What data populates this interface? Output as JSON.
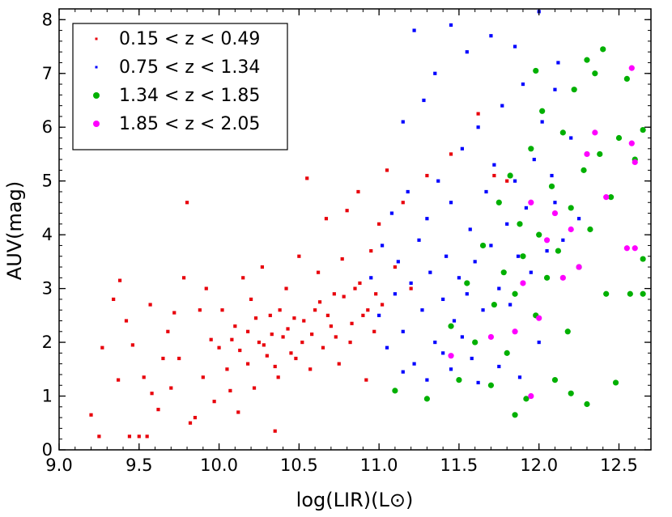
{
  "chart_data": {
    "type": "scatter",
    "xlabel": "log(LIR)(L⊙)",
    "ylabel": "AUV(mag)",
    "xlim": [
      9.0,
      12.7
    ],
    "ylim": [
      0,
      8.2
    ],
    "xticks": [
      "9.0",
      "9.5",
      "10.0",
      "10.5",
      "11.0",
      "11.5",
      "12.0",
      "12.5"
    ],
    "yticks": [
      "0",
      "1",
      "2",
      "3",
      "4",
      "5",
      "6",
      "7",
      "8"
    ],
    "grid": false,
    "legend_position": "top-left",
    "series": [
      {
        "name": "0.15 < z < 0.49",
        "color": "#e8000b",
        "marker": "square",
        "points": [
          [
            9.2,
            0.65
          ],
          [
            9.25,
            0.25
          ],
          [
            9.27,
            1.9
          ],
          [
            9.34,
            2.8
          ],
          [
            9.37,
            1.3
          ],
          [
            9.38,
            3.15
          ],
          [
            9.42,
            2.4
          ],
          [
            9.44,
            0.25
          ],
          [
            9.46,
            1.95
          ],
          [
            9.5,
            0.25
          ],
          [
            9.53,
            1.35
          ],
          [
            9.55,
            0.25
          ],
          [
            9.57,
            2.7
          ],
          [
            9.58,
            1.05
          ],
          [
            9.62,
            0.75
          ],
          [
            9.65,
            1.7
          ],
          [
            9.68,
            2.2
          ],
          [
            9.7,
            1.15
          ],
          [
            9.72,
            2.55
          ],
          [
            9.75,
            1.7
          ],
          [
            9.78,
            3.2
          ],
          [
            9.8,
            4.6
          ],
          [
            9.82,
            0.5
          ],
          [
            9.85,
            0.6
          ],
          [
            9.88,
            2.6
          ],
          [
            9.9,
            1.35
          ],
          [
            9.92,
            3.0
          ],
          [
            9.95,
            2.05
          ],
          [
            9.97,
            0.9
          ],
          [
            10.0,
            1.9
          ],
          [
            10.02,
            2.6
          ],
          [
            10.05,
            1.5
          ],
          [
            10.07,
            1.1
          ],
          [
            10.1,
            2.3
          ],
          [
            10.12,
            0.7
          ],
          [
            10.15,
            3.2
          ],
          [
            10.18,
            1.6
          ],
          [
            10.2,
            2.8
          ],
          [
            10.22,
            1.15
          ],
          [
            10.25,
            2.0
          ],
          [
            10.27,
            3.4
          ],
          [
            10.3,
            1.75
          ],
          [
            10.32,
            2.5
          ],
          [
            10.35,
            0.35
          ],
          [
            10.37,
            1.35
          ],
          [
            10.4,
            2.1
          ],
          [
            10.42,
            3.0
          ],
          [
            10.45,
            1.8
          ],
          [
            10.47,
            2.45
          ],
          [
            10.5,
            3.6
          ],
          [
            10.52,
            2.0
          ],
          [
            10.55,
            5.05
          ],
          [
            10.57,
            1.5
          ],
          [
            10.6,
            2.6
          ],
          [
            10.62,
            3.3
          ],
          [
            10.65,
            1.9
          ],
          [
            10.67,
            4.3
          ],
          [
            10.7,
            2.3
          ],
          [
            10.72,
            2.9
          ],
          [
            10.75,
            1.6
          ],
          [
            10.77,
            3.55
          ],
          [
            10.8,
            4.45
          ],
          [
            10.82,
            2.0
          ],
          [
            10.85,
            3.0
          ],
          [
            10.87,
            4.8
          ],
          [
            10.9,
            2.5
          ],
          [
            10.92,
            1.3
          ],
          [
            10.95,
            3.7
          ],
          [
            10.97,
            2.2
          ],
          [
            11.0,
            4.2
          ],
          [
            11.02,
            2.7
          ],
          [
            11.05,
            5.2
          ],
          [
            11.1,
            3.4
          ],
          [
            11.15,
            4.6
          ],
          [
            11.2,
            3.0
          ],
          [
            11.3,
            5.1
          ],
          [
            11.45,
            5.5
          ],
          [
            11.62,
            6.25
          ],
          [
            11.72,
            5.1
          ],
          [
            11.8,
            5.0
          ],
          [
            10.08,
            2.05
          ],
          [
            10.13,
            1.85
          ],
          [
            10.18,
            2.2
          ],
          [
            10.23,
            2.45
          ],
          [
            10.28,
            1.95
          ],
          [
            10.33,
            2.15
          ],
          [
            10.38,
            2.6
          ],
          [
            10.43,
            2.25
          ],
          [
            10.48,
            1.7
          ],
          [
            10.53,
            2.4
          ],
          [
            10.58,
            2.15
          ],
          [
            10.63,
            2.75
          ],
          [
            10.68,
            2.5
          ],
          [
            10.73,
            2.1
          ],
          [
            10.78,
            2.85
          ],
          [
            10.83,
            2.35
          ],
          [
            10.88,
            3.1
          ],
          [
            10.93,
            2.6
          ],
          [
            10.98,
            2.9
          ],
          [
            10.35,
            1.55
          ]
        ]
      },
      {
        "name": "0.75 < z < 1.34",
        "color": "#0000ff",
        "marker": "square",
        "points": [
          [
            10.95,
            3.2
          ],
          [
            11.0,
            2.5
          ],
          [
            11.02,
            3.8
          ],
          [
            11.05,
            1.9
          ],
          [
            11.08,
            4.4
          ],
          [
            11.1,
            2.9
          ],
          [
            11.12,
            3.5
          ],
          [
            11.15,
            2.2
          ],
          [
            11.18,
            4.8
          ],
          [
            11.2,
            3.1
          ],
          [
            11.22,
            1.6
          ],
          [
            11.25,
            3.9
          ],
          [
            11.27,
            2.6
          ],
          [
            11.3,
            4.3
          ],
          [
            11.32,
            3.3
          ],
          [
            11.35,
            2.0
          ],
          [
            11.37,
            5.0
          ],
          [
            11.4,
            2.8
          ],
          [
            11.42,
            3.6
          ],
          [
            11.45,
            4.6
          ],
          [
            11.47,
            2.4
          ],
          [
            11.5,
            3.2
          ],
          [
            11.52,
            5.6
          ],
          [
            11.55,
            2.9
          ],
          [
            11.57,
            4.1
          ],
          [
            11.6,
            3.5
          ],
          [
            11.62,
            6.0
          ],
          [
            11.65,
            2.6
          ],
          [
            11.67,
            4.8
          ],
          [
            11.7,
            3.8
          ],
          [
            11.72,
            5.3
          ],
          [
            11.75,
            3.0
          ],
          [
            11.77,
            6.4
          ],
          [
            11.8,
            4.2
          ],
          [
            11.82,
            2.7
          ],
          [
            11.85,
            5.0
          ],
          [
            11.87,
            3.6
          ],
          [
            11.9,
            6.8
          ],
          [
            11.92,
            4.5
          ],
          [
            11.95,
            3.3
          ],
          [
            11.97,
            5.4
          ],
          [
            12.0,
            4.0
          ],
          [
            12.02,
            6.1
          ],
          [
            12.05,
            3.7
          ],
          [
            12.08,
            5.1
          ],
          [
            12.1,
            4.6
          ],
          [
            12.12,
            7.2
          ],
          [
            12.15,
            3.9
          ],
          [
            12.2,
            5.8
          ],
          [
            12.25,
            4.3
          ],
          [
            11.22,
            7.8
          ],
          [
            11.35,
            7.0
          ],
          [
            11.45,
            7.9
          ],
          [
            11.55,
            7.4
          ],
          [
            11.7,
            7.7
          ],
          [
            11.85,
            7.5
          ],
          [
            12.0,
            8.15
          ],
          [
            12.1,
            6.7
          ],
          [
            11.15,
            6.1
          ],
          [
            11.28,
            6.5
          ],
          [
            11.3,
            1.3
          ],
          [
            11.45,
            1.5
          ],
          [
            11.58,
            1.7
          ],
          [
            11.62,
            1.25
          ],
          [
            11.75,
            1.55
          ],
          [
            11.88,
            1.35
          ],
          [
            12.0,
            2.0
          ],
          [
            11.15,
            1.45
          ],
          [
            11.4,
            1.8
          ],
          [
            11.52,
            2.1
          ]
        ]
      },
      {
        "name": "1.34 < z < 1.85",
        "color": "#00b000",
        "marker": "circle",
        "points": [
          [
            11.1,
            1.1
          ],
          [
            11.3,
            0.95
          ],
          [
            11.45,
            2.3
          ],
          [
            11.5,
            1.3
          ],
          [
            11.55,
            3.1
          ],
          [
            11.6,
            2.0
          ],
          [
            11.65,
            3.8
          ],
          [
            11.7,
            1.2
          ],
          [
            11.72,
            2.7
          ],
          [
            11.75,
            4.6
          ],
          [
            11.78,
            3.3
          ],
          [
            11.8,
            1.8
          ],
          [
            11.82,
            5.1
          ],
          [
            11.85,
            2.9
          ],
          [
            11.88,
            4.2
          ],
          [
            11.9,
            3.6
          ],
          [
            11.92,
            0.95
          ],
          [
            11.95,
            5.6
          ],
          [
            11.98,
            2.5
          ],
          [
            12.0,
            4.0
          ],
          [
            12.02,
            6.3
          ],
          [
            12.05,
            3.2
          ],
          [
            12.08,
            4.9
          ],
          [
            12.1,
            1.3
          ],
          [
            12.12,
            3.7
          ],
          [
            12.15,
            5.9
          ],
          [
            12.18,
            2.2
          ],
          [
            12.2,
            4.5
          ],
          [
            12.22,
            6.7
          ],
          [
            12.25,
            3.4
          ],
          [
            12.28,
            5.2
          ],
          [
            12.3,
            0.85
          ],
          [
            12.32,
            4.1
          ],
          [
            12.35,
            7.0
          ],
          [
            12.38,
            5.5
          ],
          [
            12.4,
            7.45
          ],
          [
            12.42,
            2.9
          ],
          [
            12.45,
            4.7
          ],
          [
            12.5,
            5.8
          ],
          [
            12.55,
            6.9
          ],
          [
            12.6,
            5.4
          ],
          [
            12.65,
            5.95
          ],
          [
            12.65,
            3.55
          ],
          [
            12.65,
            2.9
          ],
          [
            12.57,
            2.9
          ],
          [
            12.48,
            1.25
          ],
          [
            12.2,
            1.05
          ],
          [
            11.85,
            0.65
          ],
          [
            11.98,
            7.05
          ],
          [
            12.3,
            7.25
          ]
        ]
      },
      {
        "name": "1.85 < z < 2.05",
        "color": "#ff00ff",
        "marker": "circle",
        "points": [
          [
            11.45,
            1.75
          ],
          [
            11.7,
            2.1
          ],
          [
            11.85,
            2.2
          ],
          [
            11.9,
            3.1
          ],
          [
            11.95,
            1.0
          ],
          [
            12.0,
            2.45
          ],
          [
            12.05,
            3.9
          ],
          [
            12.1,
            4.4
          ],
          [
            12.15,
            3.2
          ],
          [
            12.2,
            4.1
          ],
          [
            12.25,
            3.4
          ],
          [
            12.3,
            5.5
          ],
          [
            12.35,
            5.9
          ],
          [
            12.42,
            4.7
          ],
          [
            12.55,
            3.75
          ],
          [
            12.6,
            3.75
          ],
          [
            12.58,
            5.7
          ],
          [
            12.6,
            5.35
          ],
          [
            12.58,
            7.1
          ],
          [
            11.95,
            4.6
          ]
        ]
      }
    ]
  }
}
